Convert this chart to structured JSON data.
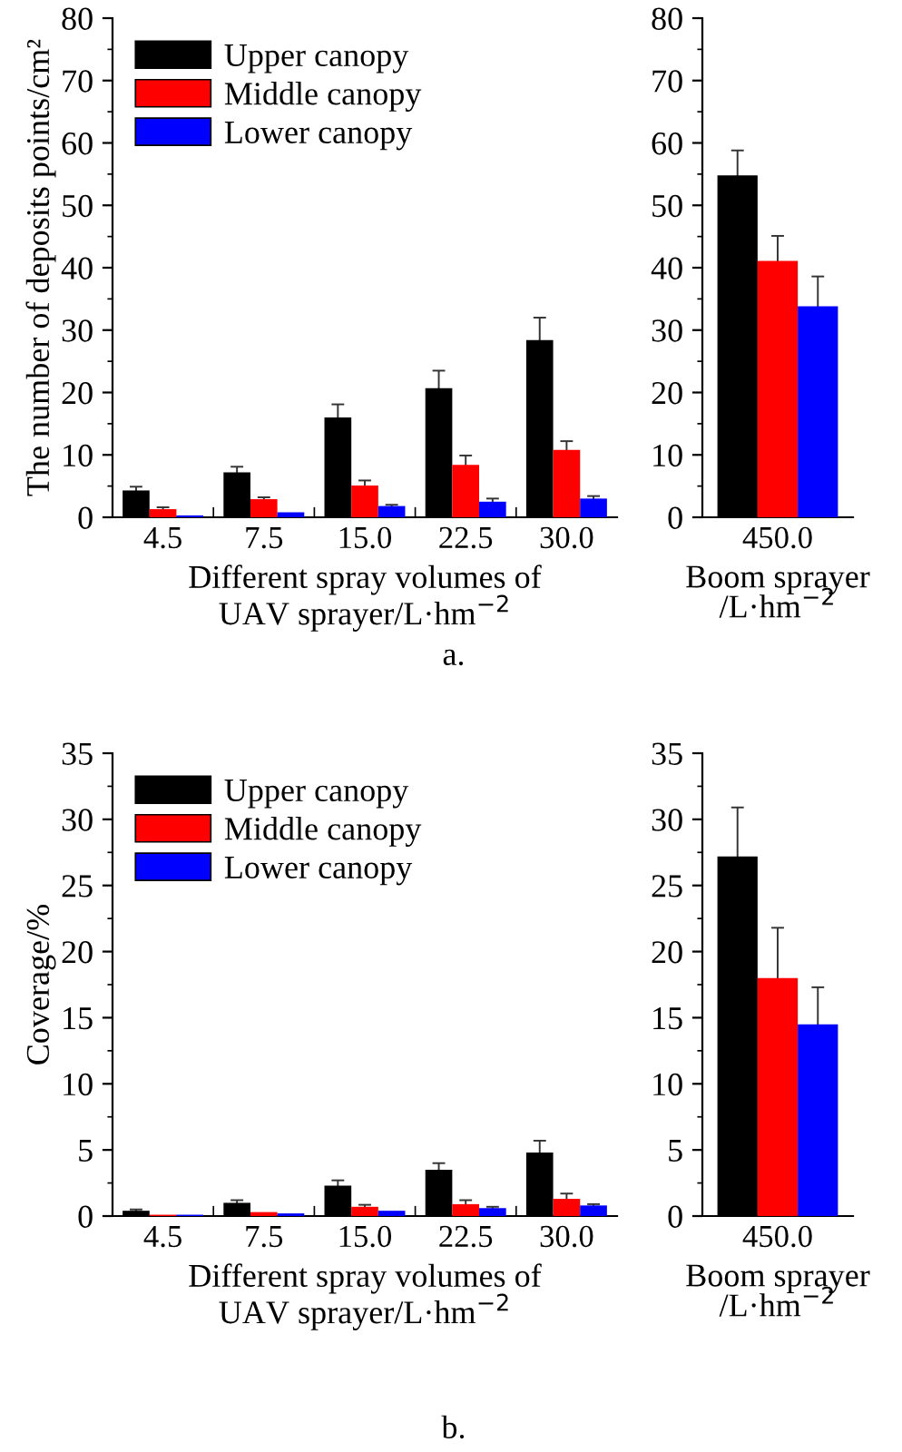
{
  "chart_data": [
    {
      "type": "bar",
      "ylabel": "The number of deposits points/cm²",
      "xlabel": "Different spray volumes of\nUAV sprayer/L·hm$^{−2}$",
      "categories": [
        "4.5",
        "7.5",
        "15.0",
        "22.5",
        "30.0"
      ],
      "ylim": [
        0,
        80
      ],
      "yticks": [
        0,
        10,
        20,
        30,
        40,
        50,
        60,
        70,
        80
      ],
      "legend": "top left",
      "grid": false,
      "annotations": [
        "a."
      ],
      "series": [
        {
          "name": "Upper canopy",
          "color": "#000000",
          "values": [
            4.3,
            7.2,
            16.0,
            20.7,
            28.4
          ],
          "errors": [
            0.6,
            0.9,
            2.1,
            2.8,
            3.6
          ]
        },
        {
          "name": "Middle canopy",
          "color": "#ff0000",
          "values": [
            1.3,
            2.9,
            5.1,
            8.4,
            10.8
          ],
          "errors": [
            0.3,
            0.3,
            0.8,
            1.5,
            1.4
          ]
        },
        {
          "name": "Lower canopy",
          "color": "#0000ff",
          "values": [
            0.3,
            0.8,
            1.8,
            2.5,
            3.0
          ],
          "errors": [
            null,
            null,
            0.2,
            0.5,
            0.4
          ]
        }
      ]
    },
    {
      "type": "bar",
      "xlabel": "Boom sprayer\n/L·hm$^{−2}$",
      "categories": [
        "450.0"
      ],
      "ylim": [
        0,
        80
      ],
      "yticks": [
        0,
        10,
        20,
        30,
        40,
        50,
        60,
        70,
        80
      ],
      "grid": false,
      "series": [
        {
          "color": "#000000",
          "values": [
            54.8
          ],
          "errors": [
            4.0
          ]
        },
        {
          "color": "#ff0000",
          "values": [
            41.1
          ],
          "errors": [
            4.0
          ]
        },
        {
          "color": "#0000ff",
          "values": [
            33.8
          ],
          "errors": [
            4.8
          ]
        }
      ]
    },
    {
      "type": "bar",
      "ylabel": "Coverage/%",
      "xlabel": "Different spray volumes of\nUAV sprayer/L·hm$^{−2}$",
      "categories": [
        "4.5",
        "7.5",
        "15.0",
        "22.5",
        "30.0"
      ],
      "ylim": [
        0,
        35
      ],
      "yticks": [
        0,
        5,
        10,
        15,
        20,
        25,
        30,
        35
      ],
      "legend": "top left",
      "grid": false,
      "annotations": [
        "b."
      ],
      "series": [
        {
          "name": "Upper canopy",
          "color": "#000000",
          "values": [
            0.4,
            1.0,
            2.3,
            3.5,
            4.8
          ],
          "errors": [
            0.1,
            0.2,
            0.4,
            0.5,
            0.9
          ]
        },
        {
          "name": "Middle canopy",
          "color": "#ff0000",
          "values": [
            0.1,
            0.3,
            0.7,
            0.9,
            1.3
          ],
          "errors": [
            null,
            null,
            0.15,
            0.3,
            0.4
          ]
        },
        {
          "name": "Lower canopy",
          "color": "#0000ff",
          "values": [
            0.1,
            0.2,
            0.4,
            0.6,
            0.8
          ],
          "errors": [
            null,
            null,
            null,
            0.1,
            0.1
          ]
        }
      ]
    },
    {
      "type": "bar",
      "xlabel": "Boom sprayer\n/L·hm$^{−2}$",
      "categories": [
        "450.0"
      ],
      "ylim": [
        0,
        35
      ],
      "yticks": [
        0,
        5,
        10,
        15,
        20,
        25,
        30,
        35
      ],
      "grid": false,
      "series": [
        {
          "color": "#000000",
          "values": [
            27.2
          ],
          "errors": [
            3.7
          ]
        },
        {
          "color": "#ff0000",
          "values": [
            18.0
          ],
          "errors": [
            3.8
          ]
        },
        {
          "color": "#0000ff",
          "values": [
            14.5
          ],
          "errors": [
            2.8
          ]
        }
      ]
    }
  ]
}
